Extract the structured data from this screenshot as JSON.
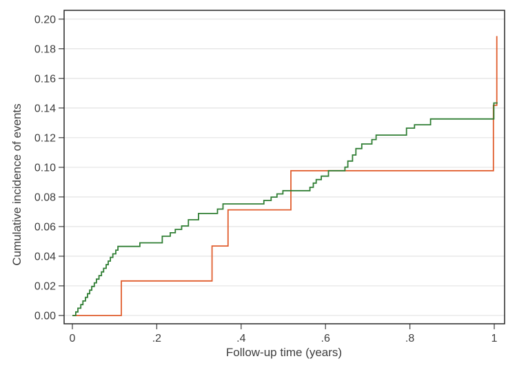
{
  "chart_data": {
    "type": "line",
    "subtype": "step",
    "title": "",
    "xlabel": "Follow-up time (years)",
    "ylabel": "Cumulative incidence of events",
    "xlim": [
      -0.0196,
      1.0245
    ],
    "ylim": [
      -0.0056,
      0.2059
    ],
    "grid": true,
    "legend_position": "none",
    "x_ticks": [
      0,
      0.2,
      0.4,
      0.6,
      0.8,
      1
    ],
    "x_tick_labels": [
      "0",
      ".2",
      ".4",
      ".6",
      ".8",
      "1"
    ],
    "y_ticks": [
      0.0,
      0.02,
      0.04,
      0.06,
      0.08,
      0.1,
      0.12,
      0.14,
      0.16,
      0.18,
      0.2
    ],
    "y_tick_labels": [
      "0.00",
      "0.02",
      "0.04",
      "0.06",
      "0.08",
      "0.10",
      "0.12",
      "0.14",
      "0.16",
      "0.18",
      "0.20"
    ],
    "colors": {
      "grid": "#e3e3e3",
      "border": "#262626",
      "tick": "#4a4a4a",
      "text": "#3d3d3d",
      "series_green": "#2e7d32",
      "series_orange": "#e05c2c"
    },
    "series": [
      {
        "name": "orange-curve",
        "color": "#e05c2c",
        "start": [
          0,
          0
        ],
        "steps": [
          [
            0.116,
            0.0233
          ],
          [
            0.331,
            0.0469
          ],
          [
            0.369,
            0.0713
          ],
          [
            0.518,
            0.0977
          ],
          [
            0.998,
            0.1418
          ],
          [
            1.006,
            0.1885
          ]
        ],
        "end_flat_t": null
      },
      {
        "name": "green-curve",
        "color": "#2e7d32",
        "start": [
          0,
          0
        ],
        "steps": [
          [
            0.008,
            0.0024
          ],
          [
            0.013,
            0.0049
          ],
          [
            0.02,
            0.0073
          ],
          [
            0.025,
            0.0098
          ],
          [
            0.031,
            0.0122
          ],
          [
            0.036,
            0.0147
          ],
          [
            0.041,
            0.0171
          ],
          [
            0.046,
            0.0196
          ],
          [
            0.052,
            0.022
          ],
          [
            0.057,
            0.0245
          ],
          [
            0.063,
            0.0269
          ],
          [
            0.069,
            0.0294
          ],
          [
            0.074,
            0.0318
          ],
          [
            0.08,
            0.0343
          ],
          [
            0.085,
            0.0367
          ],
          [
            0.09,
            0.0392
          ],
          [
            0.096,
            0.0416
          ],
          [
            0.103,
            0.0441
          ],
          [
            0.108,
            0.0466
          ],
          [
            0.16,
            0.049
          ],
          [
            0.213,
            0.0535
          ],
          [
            0.232,
            0.0558
          ],
          [
            0.244,
            0.0581
          ],
          [
            0.259,
            0.0604
          ],
          [
            0.275,
            0.0646
          ],
          [
            0.299,
            0.0688
          ],
          [
            0.344,
            0.0718
          ],
          [
            0.357,
            0.0753
          ],
          [
            0.454,
            0.0776
          ],
          [
            0.471,
            0.0799
          ],
          [
            0.485,
            0.082
          ],
          [
            0.499,
            0.0842
          ],
          [
            0.563,
            0.0865
          ],
          [
            0.571,
            0.0893
          ],
          [
            0.578,
            0.0917
          ],
          [
            0.59,
            0.094
          ],
          [
            0.607,
            0.0977
          ],
          [
            0.646,
            0.1001
          ],
          [
            0.653,
            0.1042
          ],
          [
            0.664,
            0.1083
          ],
          [
            0.672,
            0.1126
          ],
          [
            0.686,
            0.1157
          ],
          [
            0.71,
            0.1187
          ],
          [
            0.72,
            0.1217
          ],
          [
            0.792,
            0.1264
          ],
          [
            0.811,
            0.1287
          ],
          [
            0.849,
            0.1326
          ],
          [
            0.999,
            0.1434
          ]
        ],
        "end_flat_t": 1.008
      }
    ]
  }
}
